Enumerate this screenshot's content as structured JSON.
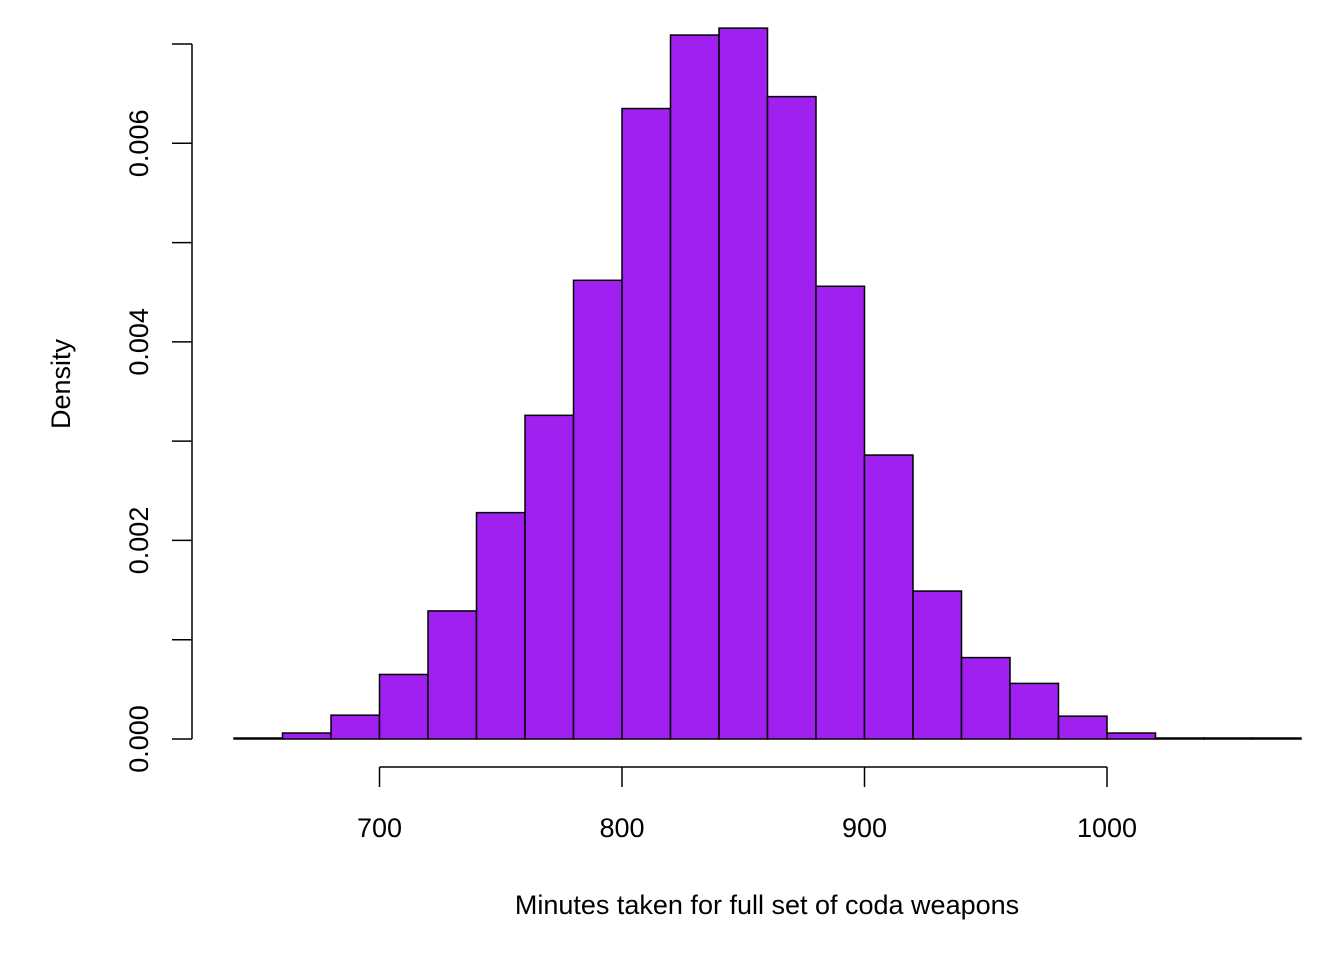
{
  "chart_data": {
    "type": "bar",
    "title": "",
    "xlabel": "Minutes taken for full set of coda weapons",
    "ylabel": "Density",
    "bin_width": 20,
    "bins_start": [
      640,
      660,
      680,
      700,
      720,
      740,
      760,
      780,
      800,
      820,
      840,
      860,
      880,
      900,
      920,
      940,
      960,
      980,
      1000,
      1020,
      1040,
      1060
    ],
    "values": [
      1e-05,
      6e-05,
      0.00024,
      0.00065,
      0.00129,
      0.00228,
      0.00326,
      0.00462,
      0.00635,
      0.00709,
      0.00716,
      0.00647,
      0.00456,
      0.00286,
      0.00149,
      0.00082,
      0.00056,
      0.00023,
      6e-05,
      1e-05,
      1e-05,
      1e-05
    ],
    "xlim": [
      640,
      1080
    ],
    "ylim": [
      0,
      0.007
    ],
    "x_ticks": [
      700,
      800,
      900,
      1000
    ],
    "x_tick_labels": [
      "700",
      "800",
      "900",
      "1000"
    ],
    "y_ticks": [
      0,
      0.001,
      0.002,
      0.003,
      0.004,
      0.005,
      0.006,
      0.007
    ],
    "y_tick_labels": [
      "0.000",
      "",
      "0.002",
      "",
      "0.004",
      "",
      "0.006",
      ""
    ],
    "grid": false,
    "bar_color": "#A020F0",
    "edge_color": "#000000"
  }
}
